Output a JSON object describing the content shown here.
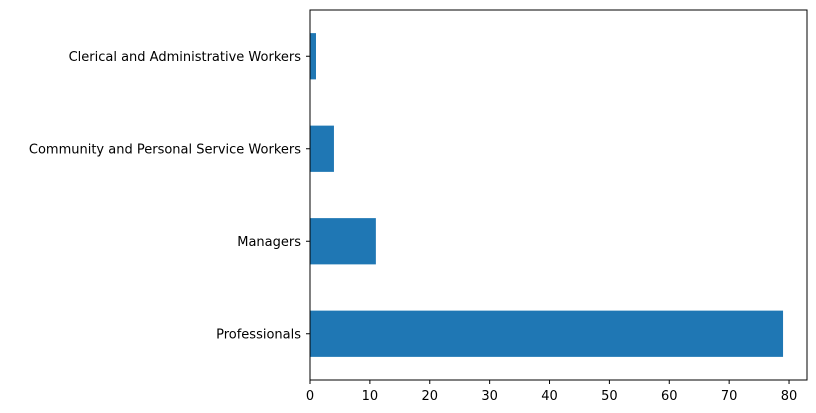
{
  "chart_data": {
    "type": "bar",
    "orientation": "horizontal",
    "categories": [
      "Clerical and Administrative Workers",
      "Community and Personal Service Workers",
      "Managers",
      "Professionals"
    ],
    "values": [
      1,
      4,
      11,
      79
    ],
    "x_ticks": [
      0,
      10,
      20,
      30,
      40,
      50,
      60,
      70,
      80
    ],
    "xlim": [
      0,
      83
    ],
    "title": "",
    "xlabel": "",
    "ylabel": "",
    "grid": false,
    "legend": "none",
    "colors": {
      "bar": "#1f77b4",
      "axis": "#000000"
    }
  }
}
